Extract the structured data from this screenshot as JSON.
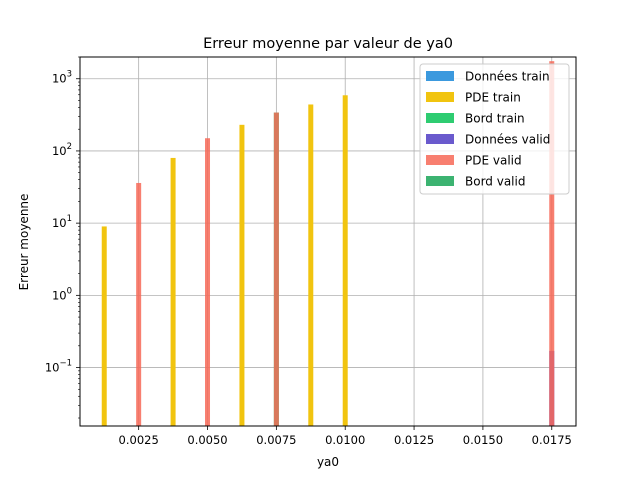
{
  "chart_data": {
    "type": "bar",
    "title": "Erreur moyenne par valeur de ya0",
    "xlabel": "ya0",
    "ylabel": "Erreur moyenne",
    "yscale": "log",
    "xlim": [
      0.00037,
      0.01838
    ],
    "ylim": [
      0.0155,
      2000
    ],
    "grid": true,
    "legend_position": "top-right",
    "x_ticks": [
      "0.0025",
      "0.0050",
      "0.0075",
      "0.0100",
      "0.0125",
      "0.0150",
      "0.0175"
    ],
    "x_tick_values": [
      0.0025,
      0.005,
      0.0075,
      0.01,
      0.0125,
      0.015,
      0.0175
    ],
    "y_ticks": [
      {
        "base": "10",
        "exp": "−1",
        "value": 0.1
      },
      {
        "base": "10",
        "exp": "0",
        "value": 1
      },
      {
        "base": "10",
        "exp": "1",
        "value": 10
      },
      {
        "base": "10",
        "exp": "2",
        "value": 100
      },
      {
        "base": "10",
        "exp": "3",
        "value": 1000
      }
    ],
    "series": [
      {
        "name": "Données train",
        "color": "#3b99de",
        "opacity": 1.0,
        "x": [],
        "values": []
      },
      {
        "name": "PDE train",
        "color": "#f1c40f",
        "opacity": 1.0,
        "x": [
          0.00125,
          0.00375,
          0.00625,
          0.00875,
          0.01
        ],
        "values": [
          9,
          80,
          230,
          440,
          590
        ]
      },
      {
        "name": "Bord train",
        "color": "#2ecc71",
        "opacity": 1.0,
        "x": [
          0.0075
        ],
        "values": [
          340
        ]
      },
      {
        "name": "Données valid",
        "color": "#6a5acd",
        "opacity": 1.0,
        "x": [
          0.0175
        ],
        "values": [
          0.17
        ]
      },
      {
        "name": "PDE valid",
        "color": "#f76857",
        "opacity": 0.85,
        "x": [
          0.0025,
          0.005,
          0.0075,
          0.0175
        ],
        "values": [
          36,
          150,
          340,
          1750
        ]
      },
      {
        "name": "Bord valid",
        "color": "#3cb371",
        "opacity": 1.0,
        "x": [],
        "values": []
      }
    ]
  }
}
